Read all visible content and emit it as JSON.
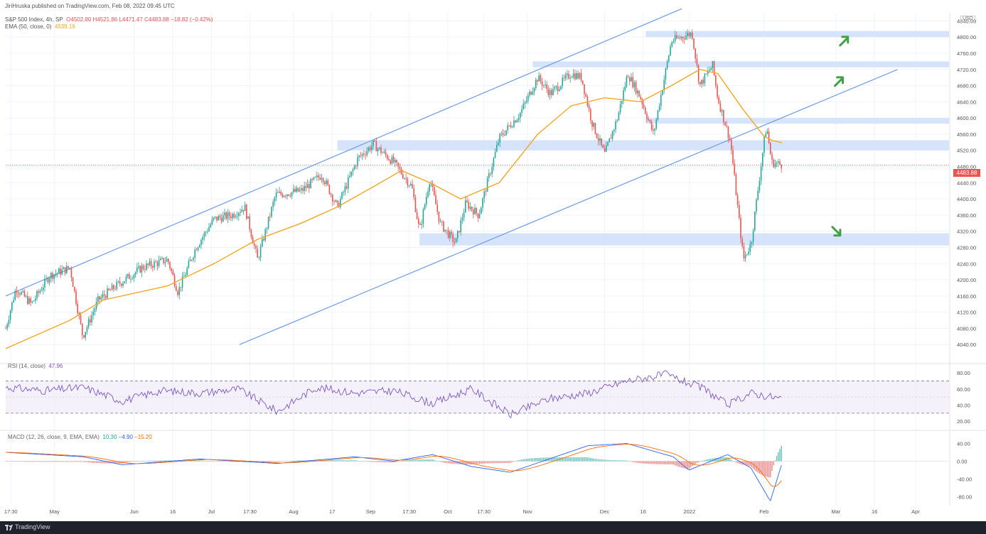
{
  "header": {
    "publisher": "JiriHruska published on TradingView.com, Feb 08, 2022 09:45 UTC",
    "symbol": "S&P 500 Index, 4h, SP",
    "open": "O4502.80",
    "high": "H4521.86",
    "low": "L4471.47",
    "close": "C4483.88",
    "change": "−18.82 (−0.42%)",
    "ema_label": "EMA (50, close, 0)",
    "ema_value": "4539.19"
  },
  "currency": "USD",
  "last_price": "4483.88",
  "rsi": {
    "label": "RSI (14, close)",
    "value": "47.96"
  },
  "macd": {
    "label": "MACD (12, 26, close, 9, EMA, EMA)",
    "hist": "10.30",
    "macd": "−4.90",
    "signal": "−15.20"
  },
  "footer": {
    "brand": "TradingView"
  },
  "colors": {
    "up": "#26a69a",
    "down": "#ef5350",
    "ema": "#f5a623",
    "channel": "#6f9be8",
    "zone": "#cfdffa",
    "rsi": "#7e57c2",
    "arrow": "#43a047",
    "macd_line": "#2962ff",
    "signal_line": "#ff6d00"
  },
  "chart_data": [
    {
      "type": "candlestick",
      "title": "S&P 500 Index, 4h, SP",
      "ylim": [
        4000,
        4860
      ],
      "y_ticks": [
        "4840.00",
        "4800.00",
        "4760.00",
        "4720.00",
        "4680.00",
        "4640.00",
        "4600.00",
        "4560.00",
        "4520.00",
        "4480.00",
        "4440.00",
        "4400.00",
        "4360.00",
        "4320.00",
        "4280.00",
        "4240.00",
        "4200.00",
        "4160.00",
        "4120.00",
        "4080.00",
        "4040.00"
      ],
      "x_ticks": [
        "17:30",
        "May",
        "Jun",
        "16",
        "Jul",
        "17:30",
        "Aug",
        "17",
        "Sep",
        "17:30",
        "Oct",
        "17:30",
        "Nov",
        "Dec",
        "16",
        "2022",
        "Feb",
        "Mar",
        "16",
        "Apr"
      ],
      "price_path": [
        [
          "2021-04-12",
          4080
        ],
        [
          "2021-04-16",
          4180
        ],
        [
          "2021-04-22",
          4140
        ],
        [
          "2021-04-29",
          4210
        ],
        [
          "2021-05-07",
          4230
        ],
        [
          "2021-05-12",
          4060
        ],
        [
          "2021-05-18",
          4150
        ],
        [
          "2021-05-26",
          4190
        ],
        [
          "2021-06-04",
          4230
        ],
        [
          "2021-06-14",
          4250
        ],
        [
          "2021-06-18",
          4170
        ],
        [
          "2021-06-25",
          4280
        ],
        [
          "2021-07-02",
          4350
        ],
        [
          "2021-07-09",
          4360
        ],
        [
          "2021-07-14",
          4380
        ],
        [
          "2021-07-19",
          4250
        ],
        [
          "2021-07-26",
          4410
        ],
        [
          "2021-08-05",
          4420
        ],
        [
          "2021-08-13",
          4460
        ],
        [
          "2021-08-19",
          4380
        ],
        [
          "2021-08-27",
          4500
        ],
        [
          "2021-09-02",
          4535
        ],
        [
          "2021-09-10",
          4490
        ],
        [
          "2021-09-17",
          4430
        ],
        [
          "2021-09-20",
          4320
        ],
        [
          "2021-09-24",
          4450
        ],
        [
          "2021-09-28",
          4340
        ],
        [
          "2021-10-04",
          4290
        ],
        [
          "2021-10-08",
          4390
        ],
        [
          "2021-10-13",
          4360
        ],
        [
          "2021-10-21",
          4550
        ],
        [
          "2021-10-29",
          4610
        ],
        [
          "2021-11-05",
          4700
        ],
        [
          "2021-11-10",
          4660
        ],
        [
          "2021-11-18",
          4710
        ],
        [
          "2021-11-22",
          4700
        ],
        [
          "2021-11-26",
          4590
        ],
        [
          "2021-12-01",
          4510
        ],
        [
          "2021-12-06",
          4600
        ],
        [
          "2021-12-10",
          4710
        ],
        [
          "2021-12-15",
          4650
        ],
        [
          "2021-12-20",
          4560
        ],
        [
          "2021-12-27",
          4790
        ],
        [
          "2022-01-04",
          4810
        ],
        [
          "2022-01-07",
          4680
        ],
        [
          "2022-01-12",
          4730
        ],
        [
          "2022-01-14",
          4650
        ],
        [
          "2022-01-19",
          4540
        ],
        [
          "2022-01-24",
          4250
        ],
        [
          "2022-01-27",
          4290
        ],
        [
          "2022-02-01",
          4540
        ],
        [
          "2022-02-02",
          4580
        ],
        [
          "2022-02-04",
          4490
        ],
        [
          "2022-02-08",
          4484
        ]
      ],
      "ema_path": [
        [
          "2021-04-12",
          4030
        ],
        [
          "2021-05-07",
          4100
        ],
        [
          "2021-05-20",
          4150
        ],
        [
          "2021-06-14",
          4185
        ],
        [
          "2021-07-02",
          4240
        ],
        [
          "2021-07-19",
          4300
        ],
        [
          "2021-08-05",
          4340
        ],
        [
          "2021-08-19",
          4380
        ],
        [
          "2021-09-02",
          4430
        ],
        [
          "2021-09-13",
          4470
        ],
        [
          "2021-09-24",
          4440
        ],
        [
          "2021-10-06",
          4400
        ],
        [
          "2021-10-21",
          4440
        ],
        [
          "2021-11-05",
          4560
        ],
        [
          "2021-11-18",
          4630
        ],
        [
          "2021-12-01",
          4650
        ],
        [
          "2021-12-15",
          4640
        ],
        [
          "2021-12-27",
          4680
        ],
        [
          "2022-01-07",
          4720
        ],
        [
          "2022-01-14",
          4710
        ],
        [
          "2022-01-24",
          4620
        ],
        [
          "2022-02-01",
          4555
        ],
        [
          "2022-02-04",
          4545
        ],
        [
          "2022-02-08",
          4539
        ]
      ],
      "channel": {
        "upper": [
          [
            "2021-04-12",
            4160
          ],
          [
            "2021-12-31",
            4870
          ]
        ],
        "lower": [
          [
            "2021-07-12",
            4040
          ],
          [
            "2022-03-25",
            4720
          ]
        ]
      },
      "zones": [
        [
          4800,
          4815
        ],
        [
          4725,
          4740
        ],
        [
          4590,
          4600
        ],
        [
          4520,
          4545
        ],
        [
          4285,
          4315
        ]
      ],
      "arrows": [
        {
          "date": "2022-03-04",
          "price": 4790,
          "direction": "up"
        },
        {
          "date": "2022-03-02",
          "price": 4690,
          "direction": "up"
        },
        {
          "date": "2022-03-01",
          "price": 4320,
          "direction": "down"
        }
      ]
    },
    {
      "type": "line",
      "title": "RSI (14, close)",
      "ylim": [
        14,
        88
      ],
      "y_ticks": [
        "80.00",
        "60.00",
        "40.00",
        "20.00"
      ],
      "bands": [
        30,
        70
      ],
      "series": [
        {
          "values": [
            [
              0,
              62
            ],
            [
              0.05,
              58
            ],
            [
              0.1,
              62
            ],
            [
              0.15,
              45
            ],
            [
              0.2,
              58
            ],
            [
              0.25,
              55
            ],
            [
              0.3,
              60
            ],
            [
              0.35,
              32
            ],
            [
              0.4,
              62
            ],
            [
              0.45,
              55
            ],
            [
              0.5,
              58
            ],
            [
              0.55,
              42
            ],
            [
              0.6,
              60
            ],
            [
              0.65,
              28
            ],
            [
              0.7,
              48
            ],
            [
              0.75,
              55
            ],
            [
              0.8,
              70
            ],
            [
              0.85,
              78
            ],
            [
              0.9,
              60
            ],
            [
              0.93,
              40
            ],
            [
              0.96,
              55
            ],
            [
              1.0,
              48
            ]
          ]
        }
      ]
    },
    {
      "type": "macd",
      "title": "MACD (12, 26, close, 9, EMA, EMA)",
      "ylim": [
        -100,
        60
      ],
      "y_ticks": [
        "40.00",
        "0.00",
        "-40.00",
        "-80.00"
      ]
    }
  ]
}
